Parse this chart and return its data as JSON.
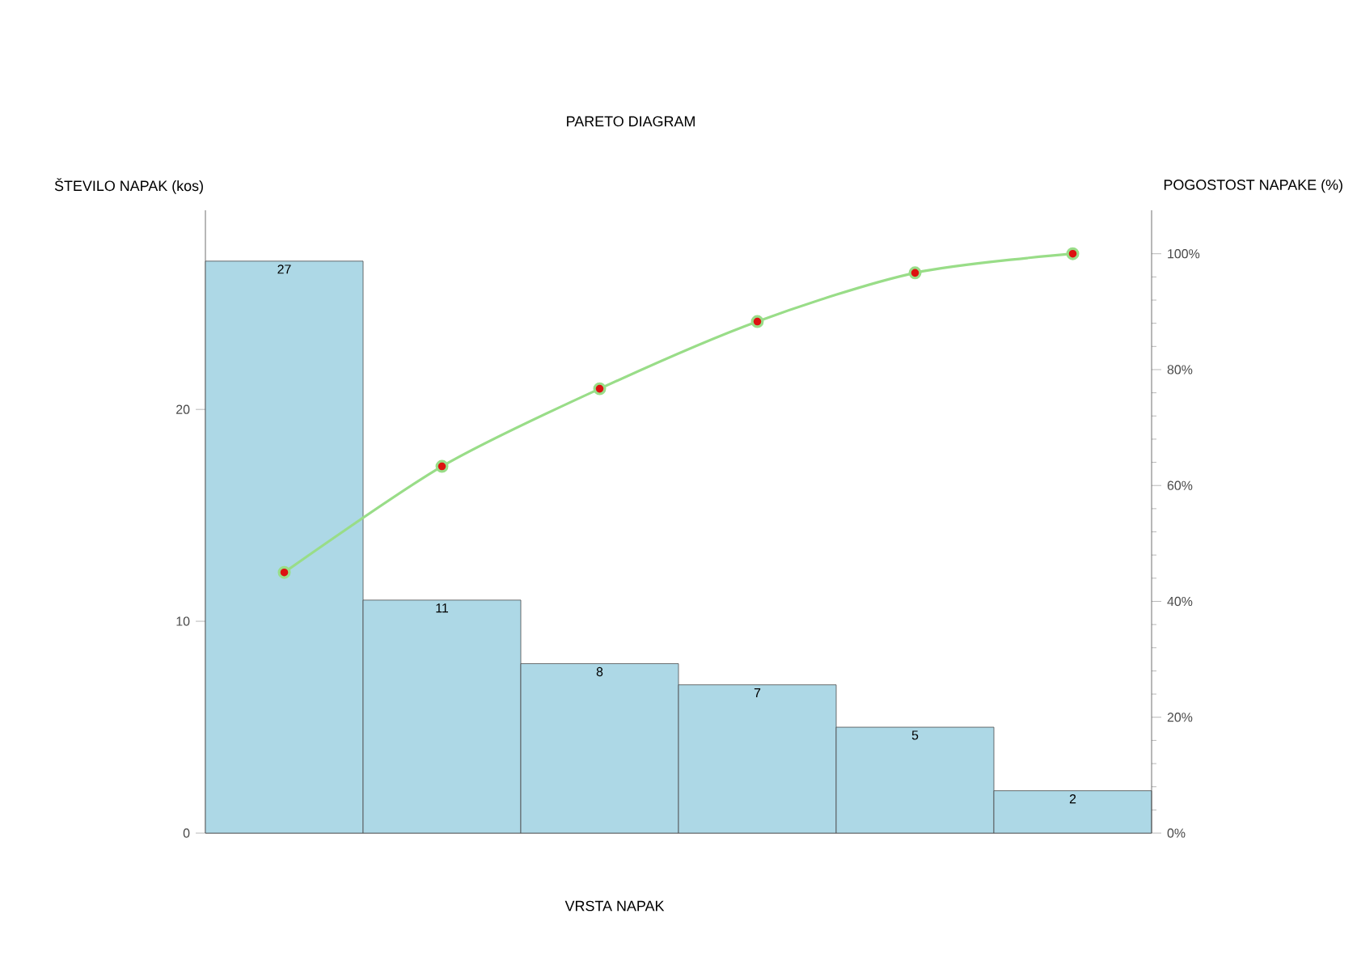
{
  "chart_data": {
    "type": "bar",
    "title": "PARETO DIAGRAM",
    "xlabel": "VRSTA NAPAK",
    "ylabel": "ŠTEVILO NAPAK (kos)",
    "y2label": "POGOSTOST NAPAKE (%)",
    "categories": [
      null,
      null,
      null,
      null,
      null,
      null
    ],
    "series": [
      {
        "color": "#add8e6",
        "values": [
          27,
          11,
          8,
          7,
          5,
          2
        ],
        "value_labels": [
          "27",
          "11",
          "8",
          "7",
          "5",
          "2"
        ]
      },
      {
        "type": "line",
        "axis": "y2",
        "color": "#99dd88",
        "colors": [
          "#dd1111",
          "#dd1111",
          "#dd1111",
          "#dd1111",
          "#dd1111",
          "#dd1111"
        ],
        "values": [
          45,
          63.3,
          76.7,
          88.3,
          96.7,
          100
        ],
        "marker": "circle"
      }
    ],
    "ylim": [
      0,
      29.4
    ],
    "yticks": [
      0,
      10,
      20
    ],
    "y2lim": [
      0,
      107.5
    ],
    "y2ticks": [
      {
        "value": 0,
        "label": "0%"
      },
      {
        "value": 20,
        "label": "20%"
      },
      {
        "value": 40,
        "label": "40%"
      },
      {
        "value": 60,
        "label": "60%"
      },
      {
        "value": 80,
        "label": "80%"
      },
      {
        "value": 100,
        "label": "100%"
      }
    ],
    "grid": false
  }
}
